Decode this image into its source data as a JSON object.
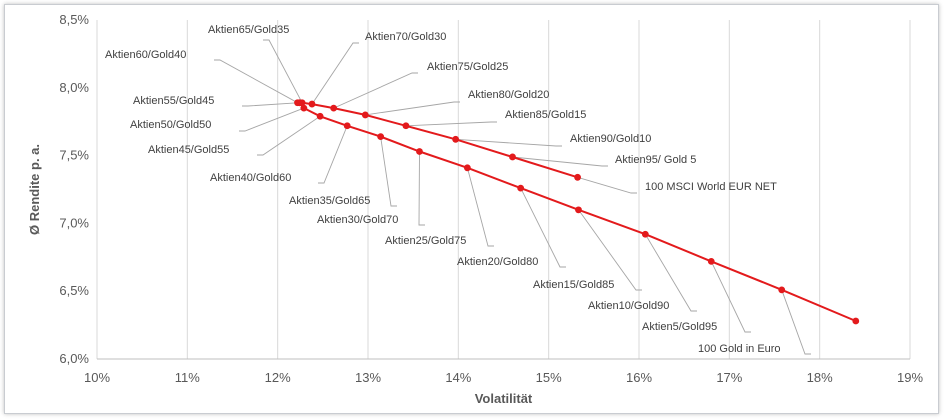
{
  "chart_data": {
    "type": "scatter",
    "title": "",
    "xlabel": "Volatilität",
    "ylabel": "Ø Rendite p. a.",
    "xlim": [
      10,
      19
    ],
    "ylim": [
      6.0,
      8.5
    ],
    "x_ticks": [
      "10%",
      "11%",
      "12%",
      "13%",
      "14%",
      "15%",
      "16%",
      "17%",
      "18%",
      "19%"
    ],
    "y_ticks": [
      "6,0%",
      "6,5%",
      "7,0%",
      "7,5%",
      "8,0%",
      "8,5%"
    ],
    "grid": "vertical",
    "series": [
      {
        "color": "#e31a1c",
        "points": [
          {
            "label": "Aktien55/Gold45",
            "x": 12.24,
            "y": 7.89
          },
          {
            "label": "Aktien60/Gold40",
            "x": 12.22,
            "y": 7.89
          },
          {
            "label": "Aktien65/Gold35",
            "x": 12.27,
            "y": 7.89
          },
          {
            "label": "Aktien70/Gold30",
            "x": 12.38,
            "y": 7.88
          },
          {
            "label": "Aktien75/Gold25",
            "x": 12.62,
            "y": 7.85
          },
          {
            "label": "Aktien80/Gold20",
            "x": 12.97,
            "y": 7.8
          },
          {
            "label": "Aktien85/Gold15",
            "x": 13.42,
            "y": 7.72
          },
          {
            "label": "Aktien90/Gold10",
            "x": 13.97,
            "y": 7.62
          },
          {
            "label": "Aktien95/ Gold 5",
            "x": 14.6,
            "y": 7.49
          },
          {
            "label": "100 MSCI World EUR NET",
            "x": 15.32,
            "y": 7.34
          }
        ]
      },
      {
        "color": "#e31a1c",
        "points": [
          {
            "label": "Aktien55/Gold45",
            "x": 12.24,
            "y": 7.89
          },
          {
            "label": "Aktien50/Gold50",
            "x": 12.29,
            "y": 7.85
          },
          {
            "label": "Aktien45/Gold55",
            "x": 12.47,
            "y": 7.79
          },
          {
            "label": "Aktien40/Gold60",
            "x": 12.77,
            "y": 7.72
          },
          {
            "label": "Aktien35/Gold65",
            "x": 13.14,
            "y": 7.64
          },
          {
            "label": "Aktien30/Gold70",
            "x": 13.57,
            "y": 7.53
          },
          {
            "label": "Aktien25/Gold75",
            "x": 14.1,
            "y": 7.41
          },
          {
            "label": "Aktien20/Gold80",
            "x": 14.69,
            "y": 7.26
          },
          {
            "label": "Aktien15/Gold85",
            "x": 15.33,
            "y": 7.1
          },
          {
            "label": "Aktien10/Gold90",
            "x": 16.07,
            "y": 6.92
          },
          {
            "label": "Aktien5/Gold95",
            "x": 16.8,
            "y": 6.72
          },
          {
            "label": "100 Gold in Euro",
            "x": 17.58,
            "y": 6.51
          },
          {
            "label": "",
            "x": 18.4,
            "y": 6.28
          }
        ]
      }
    ],
    "annotations": [
      {
        "text": "Aktien65/Gold35",
        "x": 12.27,
        "y": 7.89
      },
      {
        "text": "Aktien70/Gold30",
        "x": 12.38,
        "y": 7.88
      },
      {
        "text": "Aktien60/Gold40",
        "x": 12.22,
        "y": 7.89
      },
      {
        "text": "Aktien75/Gold25",
        "x": 12.62,
        "y": 7.85
      },
      {
        "text": "Aktien80/Gold20",
        "x": 12.97,
        "y": 7.8
      },
      {
        "text": "Aktien55/Gold45",
        "x": 12.24,
        "y": 7.89
      },
      {
        "text": "Aktien85/Gold15",
        "x": 13.42,
        "y": 7.72
      },
      {
        "text": "Aktien50/Gold50",
        "x": 12.29,
        "y": 7.85
      },
      {
        "text": "Aktien90/Gold10",
        "x": 13.97,
        "y": 7.62
      },
      {
        "text": "Aktien45/Gold55",
        "x": 12.47,
        "y": 7.79
      },
      {
        "text": "Aktien95/ Gold 5",
        "x": 14.6,
        "y": 7.49
      },
      {
        "text": "Aktien40/Gold60",
        "x": 12.77,
        "y": 7.72
      },
      {
        "text": "100 MSCI World EUR NET",
        "x": 15.32,
        "y": 7.34
      },
      {
        "text": "Aktien35/Gold65",
        "x": 13.14,
        "y": 7.64
      },
      {
        "text": "Aktien30/Gold70",
        "x": 13.57,
        "y": 7.53
      },
      {
        "text": "Aktien25/Gold75",
        "x": 14.1,
        "y": 7.41
      },
      {
        "text": "Aktien20/Gold80",
        "x": 14.69,
        "y": 7.26
      },
      {
        "text": "Aktien15/Gold85",
        "x": 15.33,
        "y": 7.1
      },
      {
        "text": "Aktien10/Gold90",
        "x": 16.07,
        "y": 6.92
      },
      {
        "text": "Aktien5/Gold95",
        "x": 16.8,
        "y": 6.72
      },
      {
        "text": "100 Gold in Euro",
        "x": 17.58,
        "y": 6.51
      }
    ]
  }
}
